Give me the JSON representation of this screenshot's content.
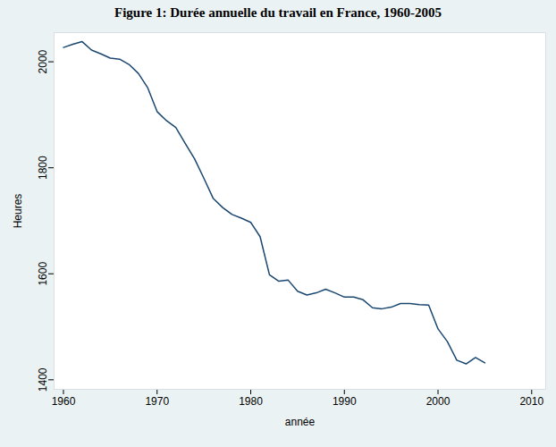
{
  "chart_data": {
    "type": "line",
    "title": "Figure 1: Durée annuelle du travail en France, 1960-2005",
    "x_label": "année",
    "y_label": "Heures",
    "x": [
      1960,
      1961,
      1962,
      1963,
      1964,
      1965,
      1966,
      1967,
      1968,
      1969,
      1970,
      1971,
      1972,
      1973,
      1974,
      1975,
      1976,
      1977,
      1978,
      1979,
      1980,
      1981,
      1982,
      1983,
      1984,
      1985,
      1986,
      1987,
      1988,
      1989,
      1990,
      1991,
      1992,
      1993,
      1994,
      1995,
      1996,
      1997,
      1998,
      1999,
      2000,
      2001,
      2002,
      2003,
      2004,
      2005
    ],
    "values": [
      2027,
      2033,
      2038,
      2022,
      2015,
      2007,
      2005,
      1995,
      1978,
      1951,
      1906,
      1889,
      1876,
      1846,
      1817,
      1780,
      1742,
      1725,
      1712,
      1705,
      1697,
      1670,
      1598,
      1586,
      1588,
      1567,
      1560,
      1564,
      1571,
      1564,
      1556,
      1556,
      1551,
      1536,
      1534,
      1537,
      1544,
      1544,
      1542,
      1541,
      1496,
      1472,
      1437,
      1430,
      1442,
      1432
    ],
    "color": "#1a476f",
    "xlim": [
      1959,
      2011.5
    ],
    "xticks": [
      1960,
      1970,
      1980,
      1990,
      2000,
      2010
    ],
    "ylim": [
      1382,
      2055
    ],
    "yticks": [
      1400,
      1600,
      1800,
      2000
    ],
    "grid": true
  }
}
